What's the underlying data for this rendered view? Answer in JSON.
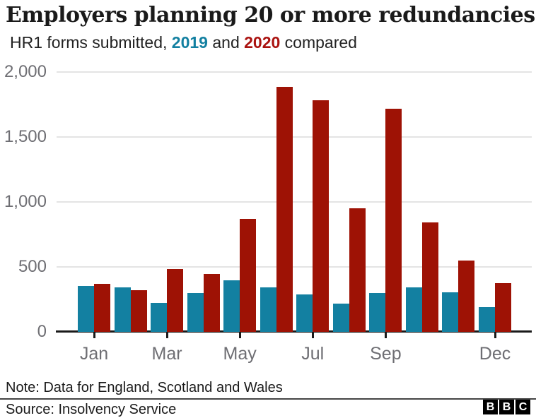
{
  "header": {
    "title": "Employers planning 20 or more redundancies",
    "subtitle_prefix": "HR1 forms submitted, ",
    "year1": "2019",
    "subtitle_mid": " and ",
    "year2": "2020",
    "subtitle_suffix": " compared"
  },
  "colors": {
    "series_2019": "#1380a1",
    "series_2020": "#9e1205",
    "year1_text": "#1380a1",
    "year2_text": "#aa1310",
    "axis_text": "#6e6e73",
    "gridline": "#e4e4e4",
    "baseline": "#1a1a1a",
    "title_text": "#1a1a1a"
  },
  "chart_data": {
    "type": "bar",
    "title": "Employers planning 20 or more redundancies",
    "subtitle": "HR1 forms submitted, 2019 and 2020 compared",
    "categories": [
      "Jan",
      "Feb",
      "Mar",
      "Apr",
      "May",
      "Jun",
      "Jul",
      "Aug",
      "Sep",
      "Oct",
      "Nov",
      "Dec"
    ],
    "x_tick_labels_shown": [
      "Jan",
      "Mar",
      "May",
      "Jul",
      "Sep",
      "Dec"
    ],
    "series": [
      {
        "name": "2019",
        "color": "#1380a1",
        "values": [
          355,
          345,
          225,
          300,
          395,
          345,
          290,
          220,
          300,
          345,
          305,
          190
        ]
      },
      {
        "name": "2020",
        "color": "#9e1205",
        "values": [
          370,
          320,
          485,
          445,
          870,
          1885,
          1780,
          950,
          1720,
          840,
          550,
          375
        ]
      }
    ],
    "ylim": [
      0,
      2000
    ],
    "y_ticks": [
      "0",
      "500",
      "1,000",
      "1,500",
      "2,000"
    ],
    "grid": true,
    "legend_position": "in-subtitle"
  },
  "footer": {
    "note": "Note: Data for England, Scotland and Wales",
    "source": "Source: Insolvency Service",
    "logo_letters": [
      "B",
      "B",
      "C"
    ]
  }
}
